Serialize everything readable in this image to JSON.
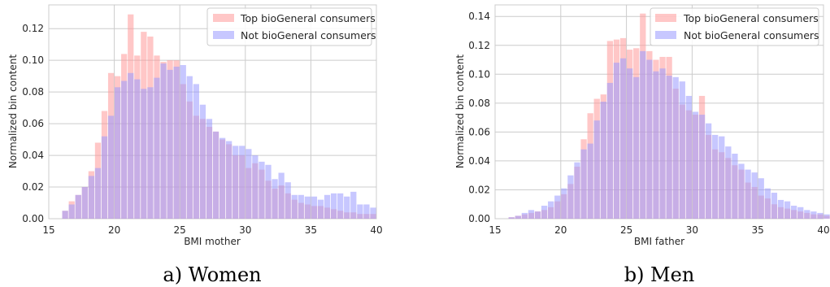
{
  "colors": {
    "top": "#ff9999",
    "not": "#9999ff",
    "grid": "#cccccc",
    "frame": "#cccccc"
  },
  "chart_data": [
    {
      "type": "bar",
      "caption": "a) Women",
      "xlabel": "BMI mother",
      "ylabel": "Normalized bin content",
      "xlim": [
        15,
        40
      ],
      "ylim": [
        0,
        0.135
      ],
      "xticks": [
        15,
        20,
        25,
        30,
        35,
        40
      ],
      "xtick_labels": [
        "15",
        "20",
        "25",
        "30",
        "35",
        "40"
      ],
      "yticks": [
        0,
        0.02,
        0.04,
        0.06,
        0.08,
        0.1,
        0.12
      ],
      "ytick_labels": [
        "0.00",
        "0.02",
        "0.04",
        "0.06",
        "0.08",
        "0.10",
        "0.12"
      ],
      "grid": true,
      "legend_position": "top-right",
      "bin_start": 16,
      "bin_width": 0.5,
      "series": [
        {
          "name": "Top bioGeneral consumers",
          "values": [
            0.005,
            0.011,
            0.015,
            0.02,
            0.03,
            0.048,
            0.068,
            0.092,
            0.09,
            0.104,
            0.129,
            0.103,
            0.118,
            0.115,
            0.103,
            0.099,
            0.1,
            0.1,
            0.085,
            0.074,
            0.065,
            0.063,
            0.058,
            0.055,
            0.05,
            0.047,
            0.04,
            0.04,
            0.032,
            0.035,
            0.031,
            0.024,
            0.019,
            0.021,
            0.016,
            0.012,
            0.01,
            0.009,
            0.008,
            0.008,
            0.007,
            0.006,
            0.005,
            0.004,
            0.004,
            0.003,
            0.003,
            0.003
          ]
        },
        {
          "name": "Not bioGeneral consumers",
          "values": [
            0.005,
            0.009,
            0.015,
            0.02,
            0.027,
            0.032,
            0.052,
            0.065,
            0.083,
            0.087,
            0.092,
            0.088,
            0.082,
            0.083,
            0.089,
            0.098,
            0.094,
            0.096,
            0.097,
            0.09,
            0.085,
            0.072,
            0.063,
            0.055,
            0.051,
            0.049,
            0.046,
            0.046,
            0.044,
            0.04,
            0.036,
            0.034,
            0.025,
            0.029,
            0.023,
            0.015,
            0.015,
            0.014,
            0.014,
            0.012,
            0.015,
            0.016,
            0.016,
            0.014,
            0.017,
            0.009,
            0.009,
            0.007
          ]
        }
      ]
    },
    {
      "type": "bar",
      "caption": "b) Men",
      "xlabel": "BMI father",
      "ylabel": "Normalized bin content",
      "xlim": [
        15,
        40
      ],
      "ylim": [
        0,
        0.148
      ],
      "xticks": [
        15,
        20,
        25,
        30,
        35,
        40
      ],
      "xtick_labels": [
        "15",
        "20",
        "25",
        "30",
        "35",
        "40"
      ],
      "yticks": [
        0,
        0.02,
        0.04,
        0.06,
        0.08,
        0.1,
        0.12,
        0.14
      ],
      "ytick_labels": [
        "0.00",
        "0.02",
        "0.04",
        "0.06",
        "0.08",
        "0.10",
        "0.12",
        "0.14"
      ],
      "grid": true,
      "legend_position": "top-right",
      "bin_start": 16,
      "bin_width": 0.5,
      "series": [
        {
          "name": "Top bioGeneral consumers",
          "values": [
            0.001,
            0.002,
            0.003,
            0.004,
            0.005,
            0.006,
            0.008,
            0.012,
            0.017,
            0.024,
            0.036,
            0.055,
            0.073,
            0.083,
            0.086,
            0.123,
            0.124,
            0.125,
            0.117,
            0.118,
            0.142,
            0.116,
            0.11,
            0.112,
            0.112,
            0.09,
            0.079,
            0.075,
            0.072,
            0.085,
            0.058,
            0.048,
            0.046,
            0.042,
            0.037,
            0.034,
            0.025,
            0.022,
            0.016,
            0.014,
            0.01,
            0.008,
            0.007,
            0.006,
            0.005,
            0.004,
            0.003,
            0.003,
            0.002,
            0.002,
            0.001
          ]
        },
        {
          "name": "Not bioGeneral consumers",
          "values": [
            0.001,
            0.002,
            0.004,
            0.006,
            0.005,
            0.009,
            0.012,
            0.016,
            0.021,
            0.03,
            0.039,
            0.048,
            0.052,
            0.068,
            0.081,
            0.094,
            0.108,
            0.111,
            0.104,
            0.098,
            0.116,
            0.11,
            0.102,
            0.104,
            0.099,
            0.098,
            0.095,
            0.085,
            0.074,
            0.072,
            0.066,
            0.058,
            0.057,
            0.05,
            0.045,
            0.038,
            0.034,
            0.032,
            0.028,
            0.021,
            0.018,
            0.013,
            0.012,
            0.009,
            0.008,
            0.006,
            0.005,
            0.004,
            0.003,
            0.002,
            0.001
          ]
        }
      ]
    }
  ]
}
